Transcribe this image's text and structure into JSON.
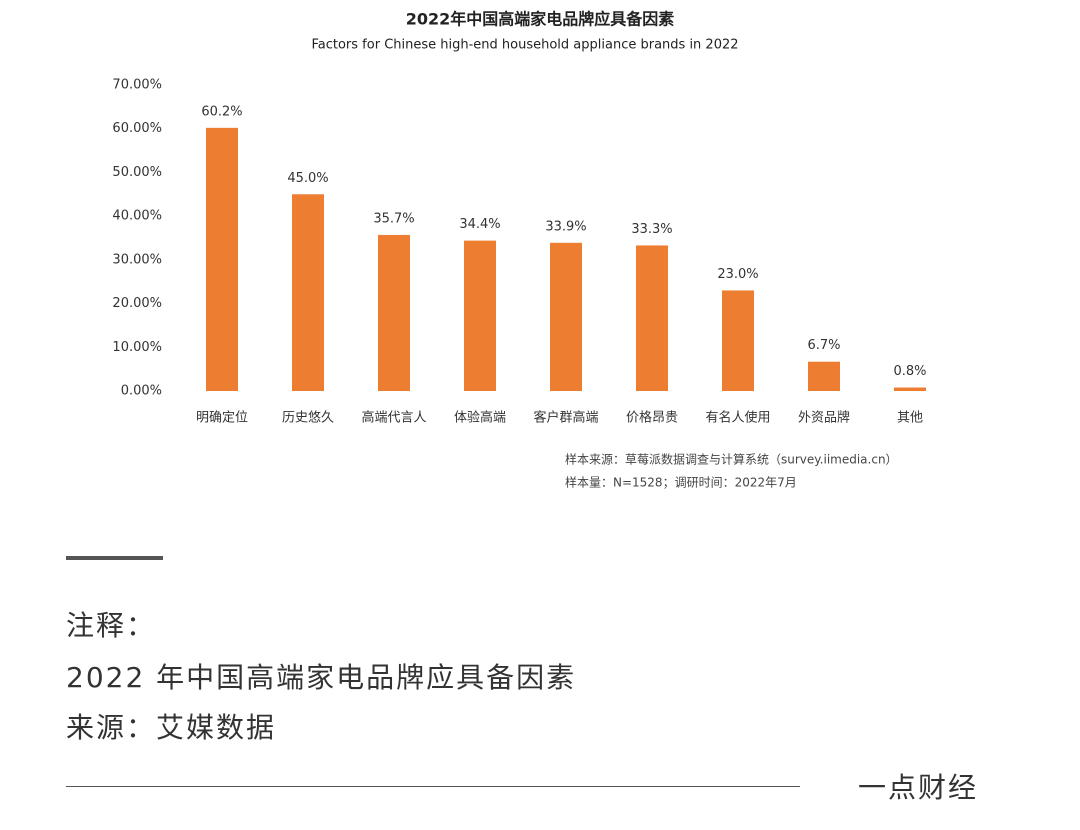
{
  "chart_data": {
    "type": "bar",
    "title": "2022年中国高端家电品牌应具备因素",
    "subtitle": "Factors for Chinese high-end household appliance brands in 2022",
    "categories": [
      "明确定位",
      "历史悠久",
      "高端代言人",
      "体验高端",
      "客户群高端",
      "价格昂贵",
      "有名人使用",
      "外资品牌",
      "其他"
    ],
    "values": [
      60.2,
      45.0,
      35.7,
      34.4,
      33.9,
      33.3,
      23.0,
      6.7,
      0.8
    ],
    "value_labels": [
      "60.2%",
      "45.0%",
      "35.7%",
      "34.4%",
      "33.9%",
      "33.3%",
      "23.0%",
      "6.7%",
      "0.8%"
    ],
    "color": "#ed7d31",
    "ylim": [
      0,
      70
    ],
    "yticks": [
      {
        "value": 0,
        "label": "0.00%"
      },
      {
        "value": 10,
        "label": "10.00%"
      },
      {
        "value": 20,
        "label": "20.00%"
      },
      {
        "value": 30,
        "label": "30.00%"
      },
      {
        "value": 40,
        "label": "40.00%"
      },
      {
        "value": 50,
        "label": "50.00%"
      },
      {
        "value": 60,
        "label": "60.00%"
      },
      {
        "value": 70,
        "label": "70.00%"
      }
    ],
    "grid": false,
    "source": [
      "样本来源：草莓派数据调查与计算系统（survey.iimedia.cn）",
      "样本量：N=1528；调研时间：2022年7月"
    ]
  },
  "notes": {
    "heading": "注释：",
    "caption": "2022 年中国高端家电品牌应具备因素",
    "origin": "来源：艾媒数据",
    "brand": "一点财经"
  }
}
